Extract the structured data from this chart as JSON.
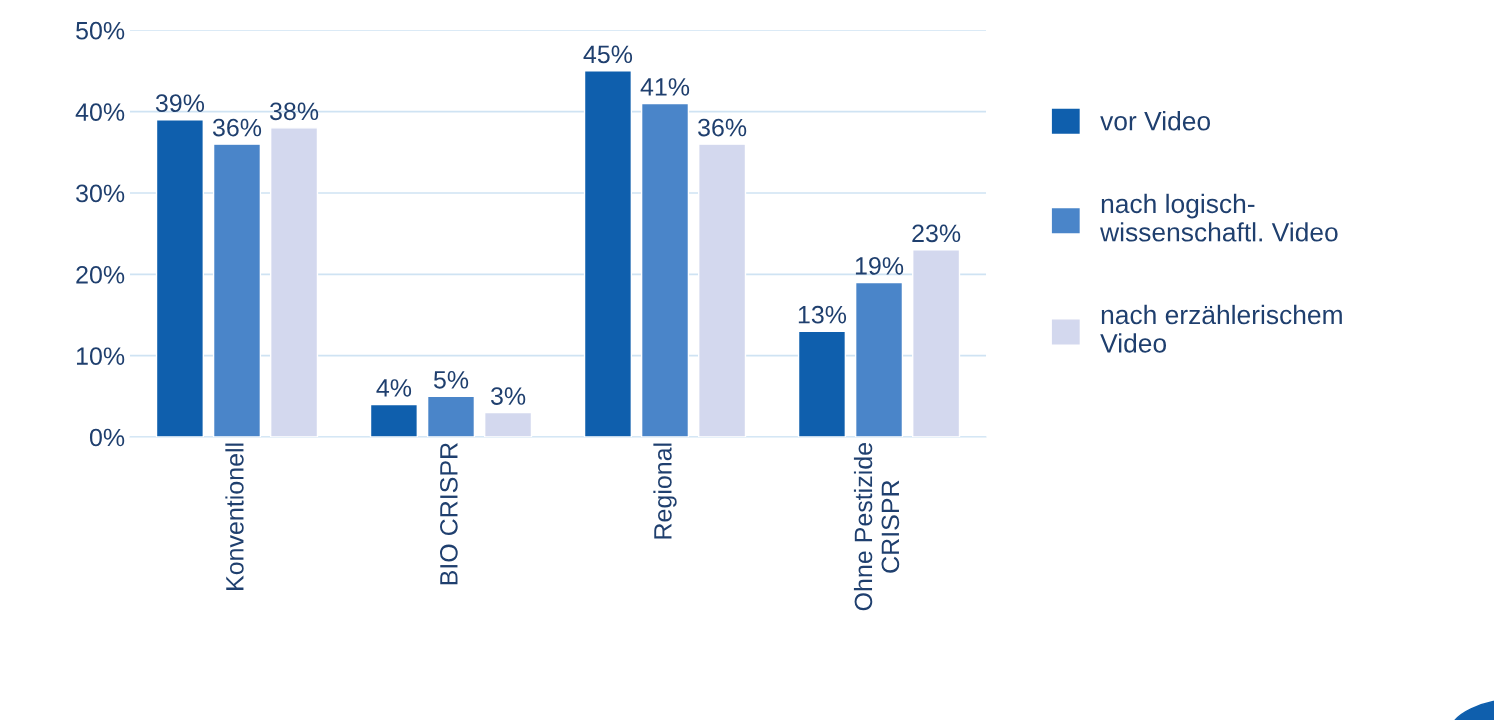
{
  "chart_data": {
    "type": "bar",
    "categories": [
      "Konventionell",
      "BIO CRISPR",
      "Regional",
      "Ohne Pestizide\nCRISPR"
    ],
    "series": [
      {
        "name": "vor Video",
        "color": "#0f5fad",
        "values": [
          39,
          4,
          45,
          13
        ],
        "value_labels": [
          "39%",
          "4%",
          "45%",
          "13%"
        ]
      },
      {
        "name": "nach logisch-\nwissenschaftl. Video",
        "color": "#4a85c9",
        "values": [
          36,
          5,
          41,
          19
        ],
        "value_labels": [
          "36%",
          "5%",
          "41%",
          "19%"
        ]
      },
      {
        "name": "nach erzählerischem\nVideo",
        "color": "#d3d8ee",
        "values": [
          38,
          3,
          36,
          23
        ],
        "value_labels": [
          "38%",
          "3%",
          "36%",
          "23%"
        ]
      }
    ],
    "ylim": [
      0,
      50
    ],
    "yticks": [
      {
        "value": 0,
        "label": "0%"
      },
      {
        "value": 10,
        "label": "10%"
      },
      {
        "value": 20,
        "label": "20%"
      },
      {
        "value": 30,
        "label": "30%"
      },
      {
        "value": 40,
        "label": "40%"
      },
      {
        "value": 50,
        "label": "50%"
      }
    ],
    "grid": "y",
    "legend": "right"
  }
}
